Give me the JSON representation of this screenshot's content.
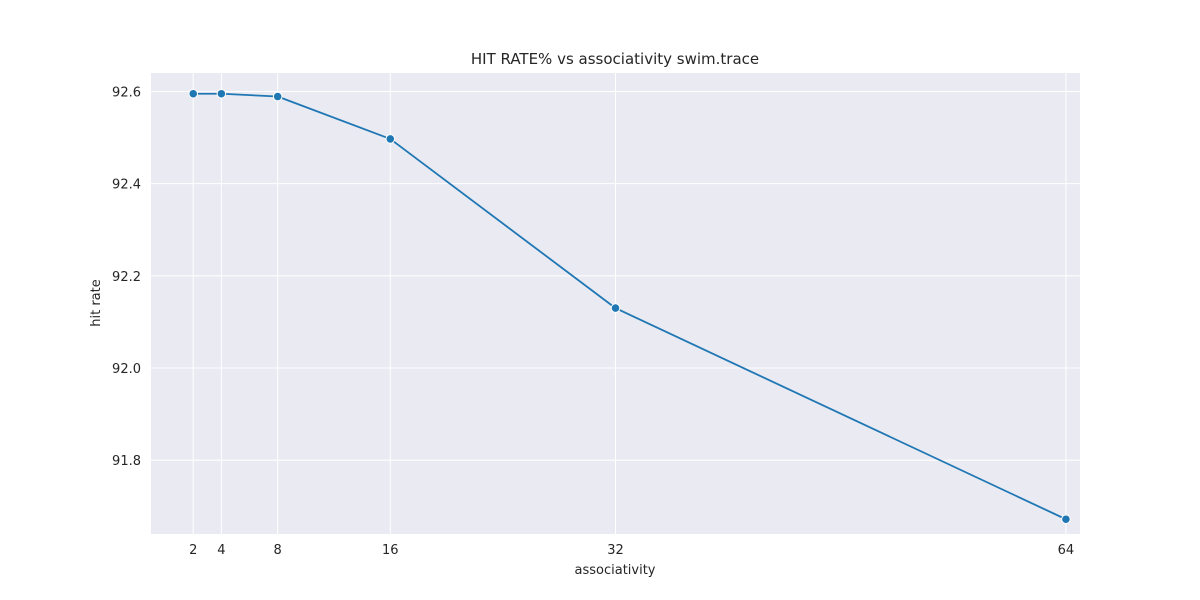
{
  "chart_data": {
    "type": "line",
    "title": "HIT RATE% vs associativity swim.trace",
    "xlabel": "associativity",
    "ylabel": "hit rate",
    "x": [
      2,
      4,
      8,
      16,
      32,
      64
    ],
    "x_tick_labels": [
      "2",
      "4",
      "8",
      "16",
      "32",
      "64"
    ],
    "series": [
      {
        "values": [
          92.595,
          92.595,
          92.589,
          92.497,
          92.13,
          91.672
        ],
        "color": "#1f77b4"
      }
    ],
    "xlim": [
      -1,
      65
    ],
    "ylim": [
      91.64,
      92.64
    ],
    "y_ticks": [
      91.8,
      92.0,
      92.2,
      92.4,
      92.6
    ],
    "y_tick_labels": [
      "91.8",
      "92.0",
      "92.2",
      "92.4",
      "92.6"
    ],
    "grid": true,
    "legend": "none",
    "background_color": "#eaeaf2",
    "marker": "circle"
  }
}
